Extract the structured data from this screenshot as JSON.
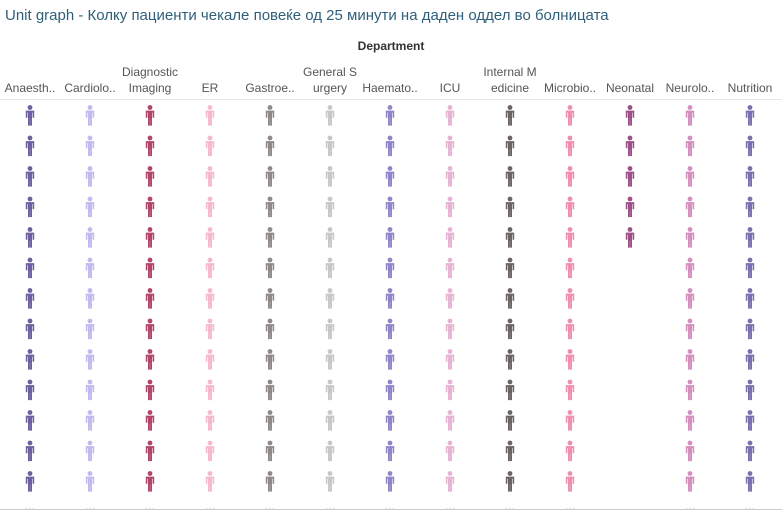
{
  "title": "Unit graph - Колку пациенти чекале повеќе од 25 минути на даден оддел во болницата",
  "chart_data": {
    "type": "unit",
    "column_dimension": "Department",
    "columns": [
      {
        "label": "Anaesth..",
        "color": "#6e5f9e",
        "visible_units": 13,
        "more": true
      },
      {
        "label": "Cardiolo..",
        "color": "#c3b9ef",
        "visible_units": 13,
        "more": true
      },
      {
        "label": "Diagnostic Imaging",
        "color": "#b3456b",
        "visible_units": 13,
        "more": true
      },
      {
        "label": "ER",
        "color": "#f6b9cc",
        "visible_units": 13,
        "more": true
      },
      {
        "label": "Gastroe..",
        "color": "#8f8a88",
        "visible_units": 13,
        "more": true
      },
      {
        "label": "General Surgery",
        "color": "#c9c6c6",
        "visible_units": 13,
        "more": true
      },
      {
        "label": "Haemato..",
        "color": "#9184c9",
        "visible_units": 13,
        "more": true
      },
      {
        "label": "ICU",
        "color": "#e6b3d3",
        "visible_units": 13,
        "more": true
      },
      {
        "label": "Internal Medicine",
        "color": "#6b6463",
        "visible_units": 13,
        "more": true
      },
      {
        "label": "Microbio..",
        "color": "#ef8eb0",
        "visible_units": 13,
        "more": true
      },
      {
        "label": "Neonatal",
        "color": "#9e4f88",
        "visible_units": 5,
        "more": false
      },
      {
        "label": "Neurolo..",
        "color": "#d48fbf",
        "visible_units": 13,
        "more": true
      },
      {
        "label": "Nutrition",
        "color": "#7c6fad",
        "visible_units": 13,
        "more": true
      }
    ]
  }
}
